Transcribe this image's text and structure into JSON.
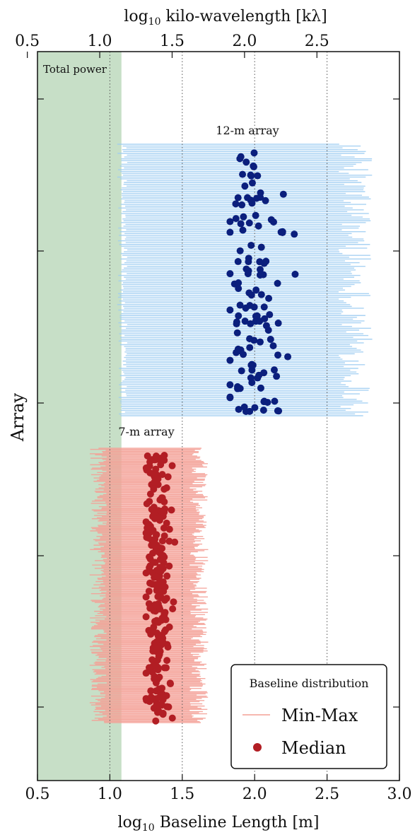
{
  "chart_data": {
    "type": "scatter",
    "xlabel": "log10 Baseline Length [m]",
    "ylabel": "Array",
    "xlim": [
      0.5,
      3.0
    ],
    "x_ticks": [
      "0.5",
      "1.0",
      "1.5",
      "2.0",
      "2.5",
      "3.0"
    ],
    "top_axis": {
      "label": "log10 kilo-wavelength [kλ]",
      "ticks": [
        "0.5",
        "1.0",
        "1.5",
        "2.0",
        "2.5"
      ],
      "tick_positions": [
        0.43,
        0.93,
        1.43,
        1.93,
        2.43
      ]
    },
    "reference_lines_x": [
      1.0,
      1.5,
      2.0,
      2.5
    ],
    "total_power": {
      "label": "Total power",
      "x_range": [
        0.5,
        1.08
      ],
      "color": "#c7dfc7"
    },
    "groups": [
      {
        "name": "12-m array",
        "label": "12-m array",
        "range_color": "#9ecdf2",
        "median_color": "#0b1f7d",
        "count": 150,
        "min_range": [
          1.05,
          1.12
        ],
        "max_range": [
          2.58,
          2.82
        ],
        "median_range": [
          1.83,
          2.3
        ],
        "median_center": 1.97
      },
      {
        "name": "7-m array",
        "label": "7-m array",
        "range_color": "#f4a096",
        "median_color": "#b21e24",
        "count": 250,
        "min_range": [
          0.86,
          0.98
        ],
        "max_range": [
          1.55,
          1.68
        ],
        "median_range": [
          1.25,
          1.45
        ],
        "median_center": 1.33
      }
    ],
    "legend": {
      "title": "Baseline distribution",
      "entries": [
        {
          "label": "Min-Max",
          "kind": "line"
        },
        {
          "label": "Median",
          "kind": "marker"
        }
      ],
      "placement": "bottom-right"
    }
  }
}
